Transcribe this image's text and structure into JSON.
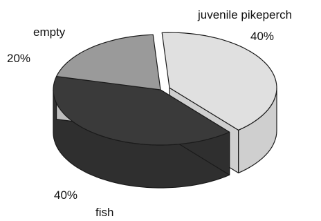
{
  "chart_data": {
    "type": "pie",
    "style": "3d-exploded",
    "categories": [
      "juvenile pikeperch",
      "fish",
      "empty"
    ],
    "values": [
      40,
      40,
      20
    ],
    "value_labels": [
      "40%",
      "40%",
      "20%"
    ],
    "colors": {
      "juvenile pikeperch": {
        "top": "#e0e0e0",
        "side": "#cfcfcf"
      },
      "fish": {
        "top": "#3a3a3a",
        "side": "#2f2f2f"
      },
      "empty": {
        "top": "#9a9a9a",
        "side": "#bdbdbd"
      }
    },
    "legend": "none"
  }
}
